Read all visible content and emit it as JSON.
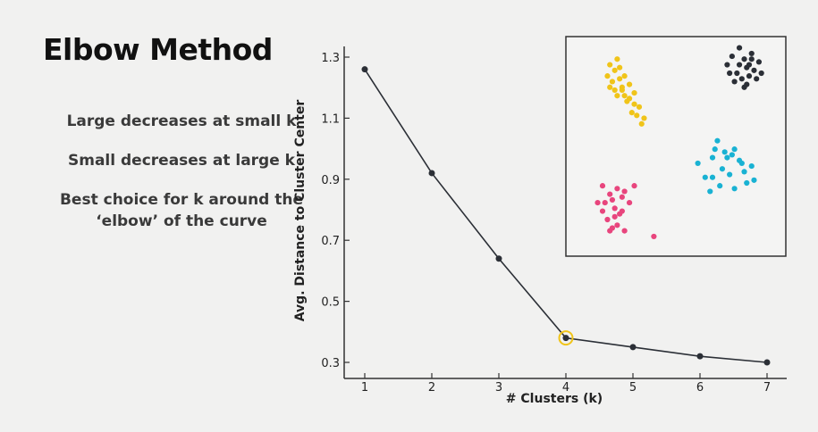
{
  "slide": {
    "title": "Elbow Method",
    "bullets": [
      "Large decreases at small k",
      "Small decreases at large k",
      "Best choice for k around the ‘elbow’ of the curve"
    ]
  },
  "chart_data": {
    "type": "line",
    "xlabel": "# Clusters (k)",
    "ylabel": "Avg. Distance to Cluster Center",
    "x": [
      1,
      2,
      3,
      4,
      5,
      6,
      7
    ],
    "y": [
      1.26,
      0.92,
      0.64,
      0.38,
      0.35,
      0.32,
      0.3
    ],
    "xticks": [
      "1",
      "2",
      "3",
      "4",
      "5",
      "6",
      "7"
    ],
    "yticks": [
      "0.3",
      "0.5",
      "0.7",
      "0.9",
      "1.1",
      "1.3"
    ],
    "ytick_values": [
      0.3,
      0.5,
      0.7,
      0.9,
      1.1,
      1.3
    ],
    "xlim": [
      1,
      7
    ],
    "ylim": [
      0.3,
      1.3
    ],
    "highlight": {
      "x": 4,
      "y": 0.38,
      "color": "#f0c419"
    },
    "line_color": "#2b2f36",
    "grid": false,
    "inset_scatter": {
      "description_colors": [
        "#2b2f36",
        "#f0c419",
        "#e8457d",
        "#19b2d3"
      ],
      "clusters": [
        {
          "color": "#2b2f36",
          "points": [
            [
              7.1,
              3.9
            ],
            [
              6.8,
              3.6
            ],
            [
              7.3,
              3.5
            ],
            [
              7.6,
              3.7
            ],
            [
              7.4,
              3.2
            ],
            [
              7.0,
              3.0
            ],
            [
              7.7,
              3.1
            ],
            [
              7.2,
              2.8
            ],
            [
              6.6,
              3.3
            ],
            [
              7.9,
              3.4
            ],
            [
              7.5,
              2.9
            ],
            [
              6.9,
              2.7
            ],
            [
              7.8,
              2.8
            ],
            [
              7.3,
              2.5
            ],
            [
              7.6,
              3.5
            ],
            [
              7.1,
              3.3
            ],
            [
              8.0,
              3.0
            ],
            [
              6.7,
              3.0
            ],
            [
              7.5,
              3.3
            ],
            [
              7.4,
              2.6
            ]
          ]
        },
        {
          "color": "#f0c419",
          "points": [
            [
              1.8,
              3.3
            ],
            [
              2.0,
              3.1
            ],
            [
              2.2,
              3.2
            ],
            [
              2.4,
              2.9
            ],
            [
              1.9,
              2.7
            ],
            [
              2.3,
              2.5
            ],
            [
              2.6,
              2.6
            ],
            [
              2.1,
              2.2
            ],
            [
              2.5,
              2.0
            ],
            [
              2.8,
              1.9
            ],
            [
              3.0,
              1.8
            ],
            [
              2.7,
              1.6
            ],
            [
              1.7,
              2.9
            ],
            [
              2.0,
              2.4
            ],
            [
              2.4,
              2.2
            ],
            [
              2.9,
              1.5
            ],
            [
              3.2,
              1.4
            ],
            [
              1.8,
              2.5
            ],
            [
              2.2,
              2.8
            ],
            [
              2.6,
              2.1
            ],
            [
              2.1,
              3.5
            ],
            [
              3.1,
              1.2
            ],
            [
              2.8,
              2.3
            ],
            [
              2.3,
              2.4
            ]
          ]
        },
        {
          "color": "#e8457d",
          "points": [
            [
              1.5,
              -1.0
            ],
            [
              1.8,
              -1.3
            ],
            [
              2.1,
              -1.1
            ],
            [
              1.9,
              -1.5
            ],
            [
              2.3,
              -1.4
            ],
            [
              1.6,
              -1.6
            ],
            [
              2.0,
              -1.8
            ],
            [
              2.4,
              -1.2
            ],
            [
              2.2,
              -2.0
            ],
            [
              1.7,
              -2.2
            ],
            [
              1.3,
              -1.6
            ],
            [
              2.6,
              -1.6
            ],
            [
              1.9,
              -2.5
            ],
            [
              2.4,
              -2.6
            ],
            [
              2.1,
              -2.4
            ],
            [
              2.8,
              -1.0
            ],
            [
              1.5,
              -1.9
            ],
            [
              2.0,
              -2.1
            ],
            [
              3.6,
              -2.8
            ],
            [
              1.8,
              -2.6
            ],
            [
              2.3,
              -1.9
            ]
          ]
        },
        {
          "color": "#19b2d3",
          "points": [
            [
              6.2,
              0.6
            ],
            [
              6.5,
              0.2
            ],
            [
              6.0,
              0.0
            ],
            [
              6.8,
              0.1
            ],
            [
              7.1,
              -0.1
            ],
            [
              6.4,
              -0.4
            ],
            [
              6.7,
              -0.6
            ],
            [
              7.3,
              -0.5
            ],
            [
              6.0,
              -0.7
            ],
            [
              5.7,
              -0.7
            ],
            [
              6.3,
              -1.0
            ],
            [
              6.9,
              -1.1
            ],
            [
              7.6,
              -0.3
            ],
            [
              7.4,
              -0.9
            ],
            [
              5.4,
              -0.2
            ],
            [
              6.6,
              0.0
            ],
            [
              6.1,
              0.3
            ],
            [
              6.9,
              0.3
            ],
            [
              7.2,
              -0.2
            ],
            [
              5.9,
              -1.2
            ],
            [
              7.7,
              -0.8
            ]
          ]
        }
      ]
    }
  }
}
